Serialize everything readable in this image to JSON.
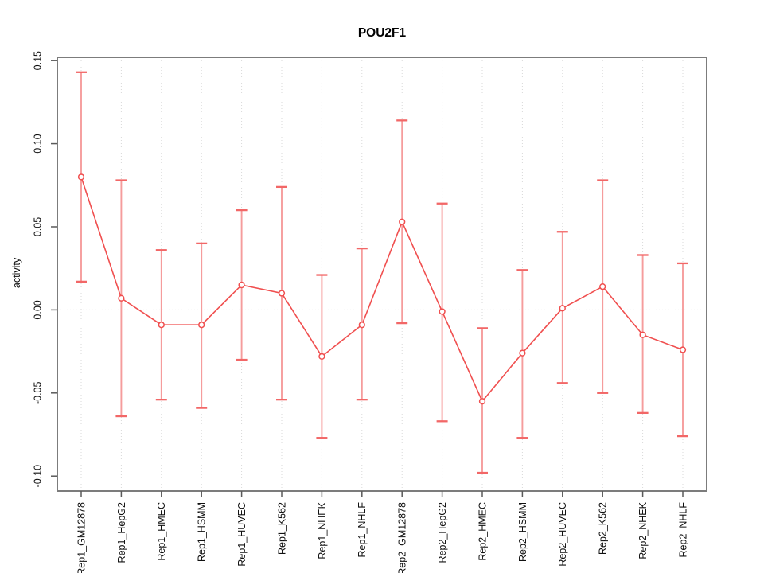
{
  "chart_data": {
    "type": "line",
    "title": "POU2F1",
    "xlabel": "",
    "ylabel": "activity",
    "categories": [
      "Rep1_GM12878",
      "Rep1_HepG2",
      "Rep1_HMEC",
      "Rep1_HSMM",
      "Rep1_HUVEC",
      "Rep1_K562",
      "Rep1_NHEK",
      "Rep1_NHLF",
      "Rep2_GM12878",
      "Rep2_HepG2",
      "Rep2_HMEC",
      "Rep2_HSMM",
      "Rep2_HUVEC",
      "Rep2_K562",
      "Rep2_NHEK",
      "Rep2_NHLF"
    ],
    "series": [
      {
        "name": "activity",
        "marker": "open-circle",
        "values": [
          0.08,
          0.007,
          -0.009,
          -0.009,
          0.015,
          0.01,
          -0.028,
          -0.009,
          0.053,
          -0.001,
          -0.055,
          -0.026,
          0.001,
          0.014,
          -0.015,
          -0.024
        ],
        "ci_low": [
          0.017,
          -0.064,
          -0.054,
          -0.059,
          -0.03,
          -0.054,
          -0.077,
          -0.054,
          -0.008,
          -0.067,
          -0.098,
          -0.077,
          -0.044,
          -0.05,
          -0.062,
          -0.076
        ],
        "ci_high": [
          0.143,
          0.078,
          0.036,
          0.04,
          0.06,
          0.074,
          0.021,
          0.037,
          0.114,
          0.064,
          -0.011,
          0.024,
          0.047,
          0.078,
          0.033,
          0.028
        ]
      }
    ],
    "ylim": [
      -0.109,
      0.152
    ],
    "yticks": [
      {
        "value": 0.15,
        "label": "0.15"
      },
      {
        "value": 0.1,
        "label": "0.10"
      },
      {
        "value": 0.05,
        "label": "0.05"
      },
      {
        "value": 0.0,
        "label": "0.00"
      },
      {
        "value": -0.05,
        "label": "-0.05"
      },
      {
        "value": -0.1,
        "label": "-0.10"
      }
    ],
    "grid": {
      "vertical_at_categories": true,
      "horizontal_at_zero": true
    },
    "legend": "none",
    "style": {
      "line_color": "#f04f4f",
      "marker_color": "#f04f4f",
      "errorbar_stem_color": "#f59c9c",
      "errorbar_cap_color": "#f26767",
      "grid_color": "#d9d9d9",
      "frame_color": "#7c7c7c",
      "tick_color": "#5a5a5a",
      "text_color": "#111111",
      "background": "#ffffff"
    }
  }
}
